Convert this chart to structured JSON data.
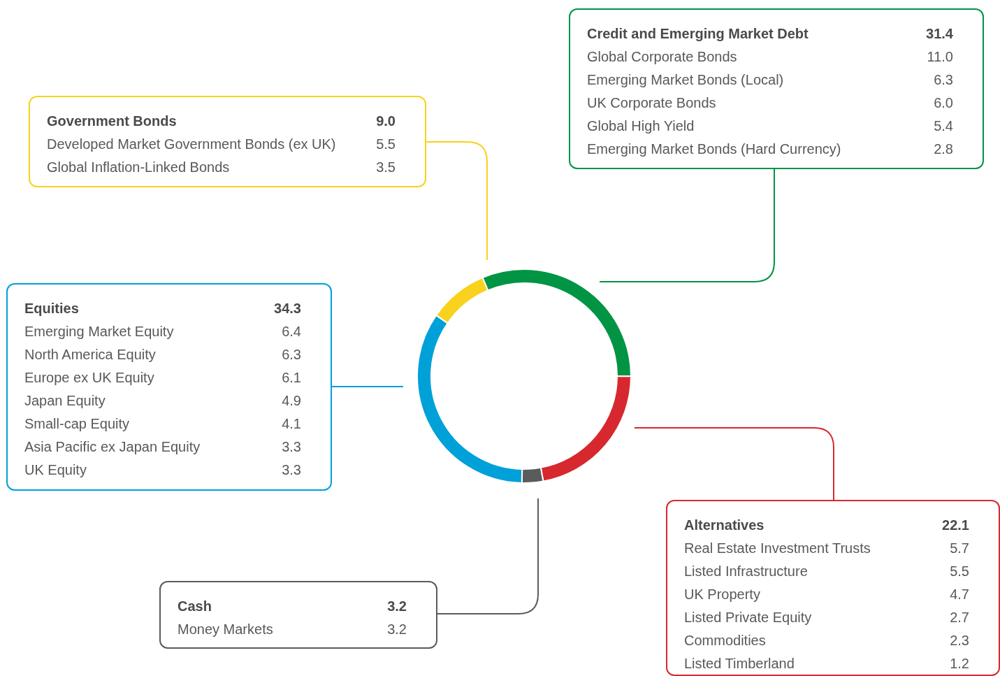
{
  "chart_data": [
    {
      "type": "donut",
      "categories": [
        "Credit and Emerging Market Debt",
        "Alternatives",
        "Cash",
        "Equities",
        "Government Bonds"
      ],
      "values": [
        31.4,
        22.1,
        3.2,
        34.3,
        9.0
      ],
      "value_labels": [
        "31.4",
        "22.1",
        "3.2",
        "34.3",
        "9.0"
      ],
      "colors": [
        "#009444",
        "#d7282f",
        "#5a5c5b",
        "#00a0d8",
        "#f8d21c"
      ]
    },
    {
      "type": "other",
      "categories": [
        "Global Corporate Bonds",
        "Emerging Market Bonds (Local)",
        "UK Corporate Bonds",
        "Global High Yield",
        "Emerging Market Bonds (Hard Currency)"
      ],
      "values": [
        11.0,
        6.3,
        6.0,
        5.4,
        2.8
      ],
      "value_labels": [
        "11.0",
        "6.3",
        "6.0",
        "5.4",
        "2.8"
      ],
      "color": "#009444"
    },
    {
      "type": "other",
      "categories": [
        "Real Estate Investment Trusts",
        "Listed Infrastructure",
        "UK Property",
        "Listed Private Equity",
        "Commodities",
        "Listed Timberland"
      ],
      "values": [
        5.7,
        5.5,
        4.7,
        2.7,
        2.3,
        1.2
      ],
      "value_labels": [
        "5.7",
        "5.5",
        "4.7",
        "2.7",
        "2.3",
        "1.2"
      ],
      "color": "#d7282f"
    },
    {
      "type": "other",
      "categories": [
        "Money Markets"
      ],
      "values": [
        3.2
      ],
      "value_labels": [
        "3.2"
      ],
      "color": "#5a5c5b"
    },
    {
      "type": "other",
      "categories": [
        "Emerging Market Equity",
        "North America Equity",
        "Europe ex UK Equity",
        "Japan Equity",
        "Small-cap Equity",
        "Asia Pacific ex Japan Equity",
        "UK Equity"
      ],
      "values": [
        6.4,
        6.3,
        6.1,
        4.9,
        4.1,
        3.3,
        3.3
      ],
      "value_labels": [
        "6.4",
        "6.3",
        "6.1",
        "4.9",
        "4.1",
        "3.3",
        "3.3"
      ],
      "color": "#00a0d8"
    },
    {
      "type": "other",
      "categories": [
        "Developed Market Government Bonds (ex UK)",
        "Global Inflation-Linked Bonds"
      ],
      "values": [
        5.5,
        3.5
      ],
      "value_labels": [
        "5.5",
        "3.5"
      ],
      "color": "#f8d21c"
    }
  ]
}
